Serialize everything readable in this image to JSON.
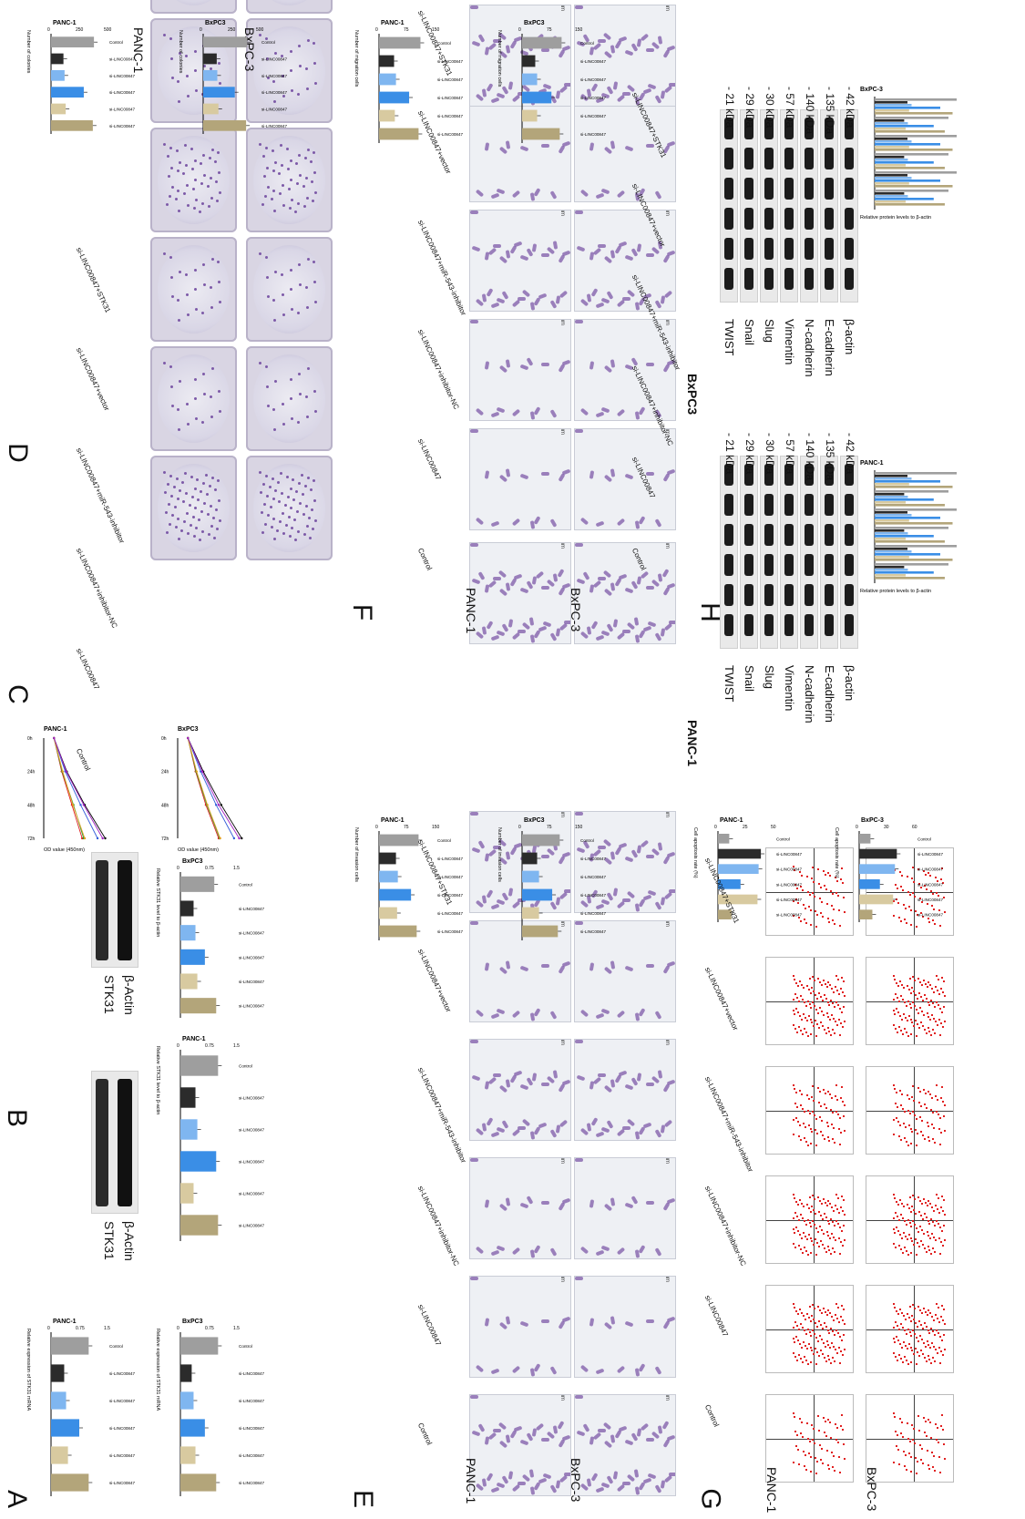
{
  "panel_letters": {
    "A": "A",
    "B": "B",
    "C": "C",
    "D": "D",
    "E": "E",
    "F": "F",
    "G": "G",
    "H": "H"
  },
  "groups": [
    "Control",
    "si-LINC00847",
    "si-LINC00847+inhibitor-NC",
    "si-LINC00847+miR-543-inhibitor",
    "si-LINC00847+vector",
    "si-LINC00847+STK31"
  ],
  "cell_lines": {
    "panc": "PANC-1",
    "bx": "BxPC-3",
    "bx3": "BxPC3"
  },
  "colors": {
    "control": "#9e9e9e",
    "si": "#2b2b2b",
    "inhNC": "#7fb6f0",
    "inh": "#3a8ee6",
    "vector": "#d8caa0",
    "stk": "#b3a57a",
    "purple": "#7d5aa8",
    "red": "#e02020"
  },
  "panelA": {
    "ylabel": "Relative expression of STK31 mRNA",
    "charts": [
      {
        "title": "PANC-1"
      },
      {
        "title": "BxPC3"
      }
    ]
  },
  "panelB": {
    "blot_labels": {
      "stk": "STK31",
      "actin": "β-Actin"
    },
    "ylabel": "Relative STK31 level to β-actin",
    "charts": [
      {
        "title": "PANC-1"
      },
      {
        "title": "BxPC3"
      }
    ]
  },
  "panelC": {
    "ylabel": "OD value (450nm)",
    "xticks": [
      "0h",
      "24h",
      "48h",
      "72h"
    ],
    "charts": [
      {
        "title": "PANC-1"
      },
      {
        "title": "BxPC3"
      }
    ]
  },
  "panelD": {
    "ylabel": "Number of colonies",
    "charts": [
      {
        "title": "PANC-1"
      },
      {
        "title": "BxPC3"
      }
    ]
  },
  "panelE": {
    "ylabel": "Number of invasion cells",
    "charts": [
      {
        "title": "PANC-1"
      },
      {
        "title": "BxPC3"
      }
    ],
    "scale": "50 μm"
  },
  "panelF": {
    "ylabel": "Number of migration cells",
    "charts": [
      {
        "title": "PANC-1"
      },
      {
        "title": "BxPC3"
      }
    ],
    "scale": "50 μm"
  },
  "panelG": {
    "ylabel": "Cell apoptosis rate (%)",
    "charts": [
      {
        "title": "PANC-1"
      },
      {
        "title": "BxPC-3"
      }
    ]
  },
  "panelH": {
    "blots": [
      {
        "cell": "PANC-1",
        "proteins": [
          "TWIST",
          "Snail",
          "Slug",
          "Vimentin",
          "N-cadherin",
          "E-cadherin",
          "β-actin"
        ],
        "kda": [
          "- 21 kDa",
          "- 29 kDa",
          "- 30 kDa",
          "- 57 kDa",
          "- 140 kDa",
          "- 135 kDa",
          "- 42 kDa"
        ]
      },
      {
        "cell": "BxPC3",
        "proteins": [
          "TWIST",
          "Snail",
          "Slug",
          "Vimentin",
          "N-cadherin",
          "E-cadherin",
          "β-actin"
        ],
        "kda": [
          "- 21 kDa",
          "- 29 kDa",
          "- 30 kDa",
          "- 57 kDa",
          "- 140 kDa",
          "- 135 kDa",
          "- 42 kDa"
        ]
      }
    ],
    "ylabel": "Relative protein levels to β-actin",
    "charts": [
      {
        "title": "PANC-1"
      },
      {
        "title": "BxPC-3"
      }
    ]
  },
  "chart_data": [
    {
      "type": "bar",
      "id": "A-PANC-1",
      "title": "PANC-1",
      "ylabel": "Relative expression of STK31 mRNA",
      "categories": [
        "Control",
        "si-LINC00847",
        "si-LINC00847+inhibitor-NC",
        "si-LINC00847+miR-543-inhibitor",
        "si-LINC00847+vector",
        "si-LINC00847+STK31"
      ],
      "values": [
        1.0,
        0.35,
        0.4,
        0.75,
        0.45,
        1.0
      ],
      "ylim": [
        0,
        1.5
      ]
    },
    {
      "type": "bar",
      "id": "A-BxPC3",
      "title": "BxPC3",
      "ylabel": "Relative expression of STK31 mRNA",
      "categories": [
        "Control",
        "si-LINC00847",
        "si-LINC00847+inhibitor-NC",
        "si-LINC00847+miR-543-inhibitor",
        "si-LINC00847+vector",
        "si-LINC00847+STK31"
      ],
      "values": [
        1.0,
        0.3,
        0.35,
        0.65,
        0.4,
        0.95
      ],
      "ylim": [
        0,
        1.5
      ]
    },
    {
      "type": "bar",
      "id": "B-PANC-1",
      "title": "PANC-1",
      "ylabel": "Relative STK31 level to β-actin",
      "categories": [
        "Control",
        "si-LINC00847",
        "si-LINC00847+inhibitor-NC",
        "si-LINC00847+miR-543-inhibitor",
        "si-LINC00847+vector",
        "si-LINC00847+STK31"
      ],
      "values": [
        1.0,
        0.4,
        0.45,
        0.95,
        0.35,
        1.0
      ],
      "ylim": [
        0,
        1.5
      ]
    },
    {
      "type": "bar",
      "id": "B-BxPC3",
      "title": "BxPC3",
      "ylabel": "Relative STK31 level to β-actin",
      "categories": [
        "Control",
        "si-LINC00847",
        "si-LINC00847+inhibitor-NC",
        "si-LINC00847+miR-543-inhibitor",
        "si-LINC00847+vector",
        "si-LINC00847+STK31"
      ],
      "values": [
        0.9,
        0.35,
        0.4,
        0.65,
        0.45,
        0.95
      ],
      "ylim": [
        0,
        1.5
      ]
    },
    {
      "type": "line",
      "id": "C-PANC-1",
      "title": "PANC-1",
      "ylabel": "OD value (450nm)",
      "x": [
        "0h",
        "24h",
        "48h",
        "72h"
      ],
      "series": [
        {
          "name": "Control",
          "values": [
            0.2,
            0.45,
            0.8,
            1.2
          ]
        },
        {
          "name": "si-LINC00847",
          "values": [
            0.2,
            0.35,
            0.55,
            0.75
          ]
        },
        {
          "name": "si-LINC00847+inhibitor-NC",
          "values": [
            0.2,
            0.36,
            0.58,
            0.78
          ]
        },
        {
          "name": "si-LINC00847+miR-543-inhibitor",
          "values": [
            0.2,
            0.42,
            0.72,
            1.05
          ]
        },
        {
          "name": "si-LINC00847+vector",
          "values": [
            0.2,
            0.37,
            0.57,
            0.8
          ]
        },
        {
          "name": "si-LINC00847+STK31",
          "values": [
            0.2,
            0.44,
            0.78,
            1.15
          ]
        }
      ],
      "ylim": [
        0,
        1.6
      ]
    },
    {
      "type": "line",
      "id": "C-BxPC3",
      "title": "BxPC3",
      "ylabel": "OD value (450nm)",
      "x": [
        "0h",
        "24h",
        "48h",
        "72h"
      ],
      "series": [
        {
          "name": "Control",
          "values": [
            0.2,
            0.5,
            0.85,
            1.25
          ]
        },
        {
          "name": "si-LINC00847",
          "values": [
            0.2,
            0.35,
            0.55,
            0.8
          ]
        },
        {
          "name": "si-LINC00847+inhibitor-NC",
          "values": [
            0.2,
            0.36,
            0.57,
            0.82
          ]
        },
        {
          "name": "si-LINC00847+miR-543-inhibitor",
          "values": [
            0.2,
            0.45,
            0.75,
            1.1
          ]
        },
        {
          "name": "si-LINC00847+vector",
          "values": [
            0.2,
            0.37,
            0.58,
            0.83
          ]
        },
        {
          "name": "si-LINC00847+STK31",
          "values": [
            0.2,
            0.48,
            0.8,
            1.2
          ]
        }
      ],
      "ylim": [
        0,
        1.6
      ]
    },
    {
      "type": "bar",
      "id": "D-PANC-1",
      "title": "PANC-1",
      "ylabel": "Number of colonies",
      "categories": [
        "Control",
        "si-LINC00847",
        "si-LINC00847+inhibitor-NC",
        "si-LINC00847+miR-543-inhibitor",
        "si-LINC00847+vector",
        "si-LINC00847+STK31"
      ],
      "values": [
        380,
        110,
        120,
        290,
        130,
        370
      ],
      "ylim": [
        0,
        500
      ]
    },
    {
      "type": "bar",
      "id": "D-BxPC3",
      "title": "BxPC3",
      "ylabel": "Number of colonies",
      "categories": [
        "Control",
        "si-LINC00847",
        "si-LINC00847+inhibitor-NC",
        "si-LINC00847+miR-543-inhibitor",
        "si-LINC00847+vector",
        "si-LINC00847+STK31"
      ],
      "values": [
        390,
        120,
        125,
        280,
        135,
        380
      ],
      "ylim": [
        0,
        500
      ]
    },
    {
      "type": "bar",
      "id": "E-PANC-1",
      "title": "PANC-1",
      "ylabel": "Number of invasion cells",
      "categories": [
        "Control",
        "si-LINC00847",
        "si-LINC00847+inhibitor-NC",
        "si-LINC00847+miR-543-inhibitor",
        "si-LINC00847+vector",
        "si-LINC00847+STK31"
      ],
      "values": [
        105,
        45,
        50,
        85,
        48,
        100
      ],
      "ylim": [
        0,
        150
      ]
    },
    {
      "type": "bar",
      "id": "E-BxPC3",
      "title": "BxPC3",
      "ylabel": "Number of invasion cells",
      "categories": [
        "Control",
        "si-LINC00847",
        "si-LINC00847+inhibitor-NC",
        "si-LINC00847+miR-543-inhibitor",
        "si-LINC00847+vector",
        "si-LINC00847+STK31"
      ],
      "values": [
        100,
        40,
        45,
        80,
        45,
        95
      ],
      "ylim": [
        0,
        150
      ]
    },
    {
      "type": "bar",
      "id": "F-PANC-1",
      "title": "PANC-1",
      "ylabel": "Number of migration cells",
      "categories": [
        "Control",
        "si-LINC00847",
        "si-LINC00847+inhibitor-NC",
        "si-LINC00847+miR-543-inhibitor",
        "si-LINC00847+vector",
        "si-LINC00847+STK31"
      ],
      "values": [
        110,
        40,
        45,
        80,
        42,
        105
      ],
      "ylim": [
        0,
        150
      ]
    },
    {
      "type": "bar",
      "id": "F-BxPC3",
      "title": "BxPC3",
      "ylabel": "Number of migration cells",
      "categories": [
        "Control",
        "si-LINC00847",
        "si-LINC00847+inhibitor-NC",
        "si-LINC00847+miR-543-inhibitor",
        "si-LINC00847+vector",
        "si-LINC00847+STK31"
      ],
      "values": [
        105,
        35,
        40,
        78,
        40,
        100
      ],
      "ylim": [
        0,
        150
      ]
    },
    {
      "type": "bar",
      "id": "G-PANC-1",
      "title": "PANC-1",
      "ylabel": "Cell apoptosis rate (%)",
      "categories": [
        "Control",
        "si-LINC00847",
        "si-LINC00847+inhibitor-NC",
        "si-LINC00847+miR-543-inhibitor",
        "si-LINC00847+vector",
        "si-LINC00847+STK31"
      ],
      "values": [
        10,
        38,
        36,
        20,
        35,
        12
      ],
      "ylim": [
        0,
        50
      ]
    },
    {
      "type": "bar",
      "id": "G-BxPC-3",
      "title": "BxPC-3",
      "ylabel": "Cell apoptosis rate (%)",
      "categories": [
        "Control",
        "si-LINC00847",
        "si-LINC00847+inhibitor-NC",
        "si-LINC00847+miR-543-inhibitor",
        "si-LINC00847+vector",
        "si-LINC00847+STK31"
      ],
      "values": [
        12,
        40,
        38,
        22,
        36,
        14
      ],
      "ylim": [
        0,
        60
      ]
    }
  ]
}
